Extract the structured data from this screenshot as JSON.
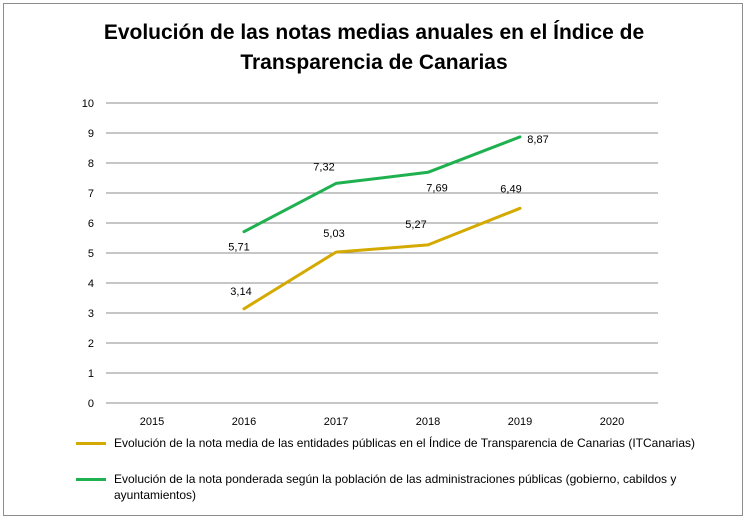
{
  "chart_data": {
    "type": "line",
    "title_line1": "Evolución de las notas medias anuales en el Índice de",
    "title_line2": "Transparencia de Canarias",
    "categories": [
      "2015",
      "2016",
      "2017",
      "2018",
      "2019",
      "2020"
    ],
    "ylim": [
      0,
      10
    ],
    "yticks": [
      "0",
      "1",
      "2",
      "3",
      "4",
      "5",
      "6",
      "7",
      "8",
      "9",
      "10"
    ],
    "grid": true,
    "legend_position": "bottom",
    "series": [
      {
        "name": "Evolución de la nota media de las entidades públicas en el Índice de Transparencia de Canarias (ITCanarias)",
        "color": "#d4a900",
        "x": [
          "2016",
          "2017",
          "2018",
          "2019"
        ],
        "values": [
          3.14,
          5.03,
          5.27,
          6.49
        ],
        "labels": [
          "3,14",
          "5,03",
          "5,27",
          "6,49"
        ]
      },
      {
        "name": "Evolución de la nota ponderada según la población de las administraciones públicas (gobierno, cabildos y ayuntamientos)",
        "color": "#1fb050",
        "x": [
          "2016",
          "2017",
          "2018",
          "2019"
        ],
        "values": [
          5.71,
          7.32,
          7.69,
          8.87
        ],
        "labels": [
          "5,71",
          "7,32",
          "7,69",
          "8,87"
        ]
      }
    ]
  }
}
